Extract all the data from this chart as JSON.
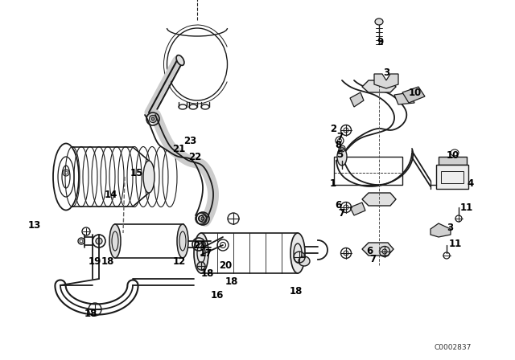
{
  "bg_color": "#ffffff",
  "line_color": "#1a1a1a",
  "code": "C0002837",
  "fig_width": 6.4,
  "fig_height": 4.48,
  "dpi": 100
}
